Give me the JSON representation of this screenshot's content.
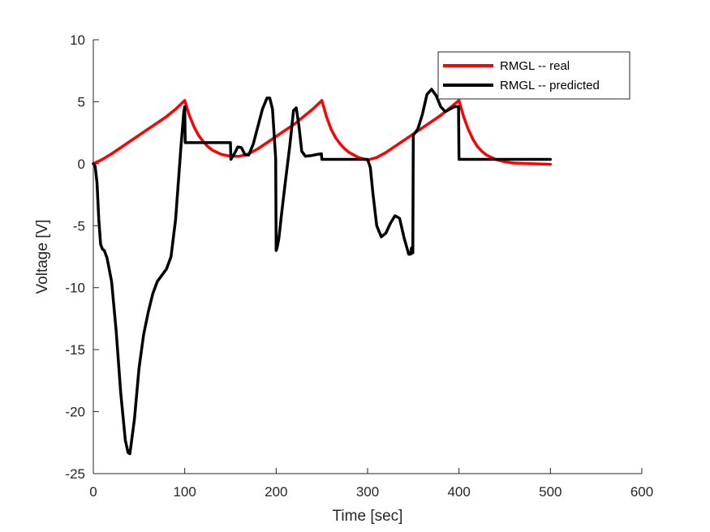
{
  "chart_data": {
    "type": "line",
    "title": "",
    "xlabel": "Time [sec]",
    "ylabel": "Voltage [V]",
    "xlim": [
      0,
      600
    ],
    "ylim": [
      -25,
      10
    ],
    "x_ticks": [
      0,
      100,
      200,
      300,
      400,
      500,
      600
    ],
    "y_ticks": [
      -25,
      -20,
      -15,
      -10,
      -5,
      0,
      5,
      10
    ],
    "x_tick_labels": [
      "0",
      "100",
      "200",
      "300",
      "400",
      "500",
      "600"
    ],
    "y_tick_labels": [
      "-25",
      "-20",
      "-15",
      "-10",
      "-5",
      "0",
      "5",
      "10"
    ],
    "grid": false,
    "legend_position": "top-right",
    "series": [
      {
        "name": "RMGL -- real",
        "color": "#ff0000",
        "x": [
          0,
          10,
          20,
          30,
          40,
          50,
          60,
          70,
          80,
          90,
          100,
          105,
          110,
          115,
          120,
          125,
          130,
          140,
          150,
          160,
          170,
          180,
          190,
          200,
          210,
          220,
          230,
          240,
          250,
          255,
          260,
          265,
          270,
          275,
          280,
          290,
          300,
          310,
          320,
          330,
          340,
          350,
          360,
          370,
          380,
          390,
          400,
          405,
          410,
          415,
          420,
          425,
          430,
          440,
          450,
          460,
          480,
          500
        ],
        "y": [
          0,
          0.35,
          0.8,
          1.3,
          1.8,
          2.3,
          2.8,
          3.3,
          3.8,
          4.4,
          5.1,
          3.9,
          3.0,
          2.3,
          1.8,
          1.4,
          1.1,
          0.75,
          0.6,
          0.6,
          0.8,
          1.2,
          1.7,
          2.2,
          2.7,
          3.2,
          3.8,
          4.4,
          5.1,
          3.8,
          2.8,
          2.1,
          1.6,
          1.2,
          0.9,
          0.5,
          0.3,
          0.5,
          0.9,
          1.4,
          1.9,
          2.4,
          2.9,
          3.4,
          3.9,
          4.5,
          5.1,
          3.8,
          2.8,
          2.0,
          1.4,
          1.0,
          0.7,
          0.35,
          0.15,
          0.05,
          0.0,
          -0.05
        ]
      },
      {
        "name": "RMGL -- predicted",
        "color": "#000000",
        "x": [
          0,
          2,
          4,
          6,
          8,
          10,
          12,
          15,
          20,
          25,
          30,
          35,
          38,
          40,
          45,
          50,
          55,
          60,
          65,
          70,
          75,
          80,
          85,
          90,
          93,
          96,
          99,
          100,
          100.5,
          105,
          110,
          120,
          130,
          140,
          150,
          150.5,
          155,
          158,
          162,
          166,
          170,
          175,
          180,
          185,
          190,
          193,
          196,
          198,
          199.5,
          200,
          201,
          203,
          206,
          210,
          215,
          219,
          222,
          225,
          228,
          232,
          238,
          245,
          249.5,
          250,
          260,
          270,
          280,
          290,
          298,
          300,
          303,
          306,
          310,
          315,
          320,
          325,
          330,
          335,
          340,
          345,
          347,
          348,
          349.5,
          350,
          355,
          360,
          365,
          370,
          375,
          380,
          385,
          390,
          395,
          399.5,
          400,
          410,
          420,
          440,
          460,
          480,
          500
        ],
        "y": [
          0,
          -0.2,
          -1.5,
          -4.5,
          -6.5,
          -6.9,
          -7.0,
          -7.6,
          -9.5,
          -13.5,
          -18.5,
          -22.3,
          -23.3,
          -23.4,
          -20.6,
          -16.5,
          -13.8,
          -12.0,
          -10.5,
          -9.5,
          -9.0,
          -8.5,
          -7.5,
          -4.5,
          -1.5,
          1.5,
          4.2,
          4.6,
          1.7,
          1.7,
          1.7,
          1.7,
          1.7,
          1.7,
          1.7,
          0.35,
          0.9,
          1.35,
          1.3,
          0.7,
          0.7,
          1.6,
          3.0,
          4.4,
          5.3,
          5.3,
          4.4,
          2.1,
          0.4,
          -7.0,
          -6.8,
          -6.0,
          -4.0,
          -1.5,
          1.5,
          4.3,
          4.5,
          3.0,
          1.0,
          0.6,
          0.65,
          0.75,
          0.8,
          0.35,
          0.35,
          0.35,
          0.35,
          0.35,
          0.35,
          0.35,
          -0.3,
          -2.5,
          -5.0,
          -5.9,
          -5.6,
          -4.8,
          -4.2,
          -4.4,
          -6.0,
          -7.3,
          -7.3,
          -6.8,
          -7.2,
          2.3,
          2.8,
          4.0,
          5.6,
          6.0,
          5.5,
          4.6,
          4.2,
          4.4,
          4.6,
          4.6,
          0.35,
          0.35,
          0.35,
          0.35,
          0.35,
          0.35,
          0.35
        ]
      }
    ]
  }
}
